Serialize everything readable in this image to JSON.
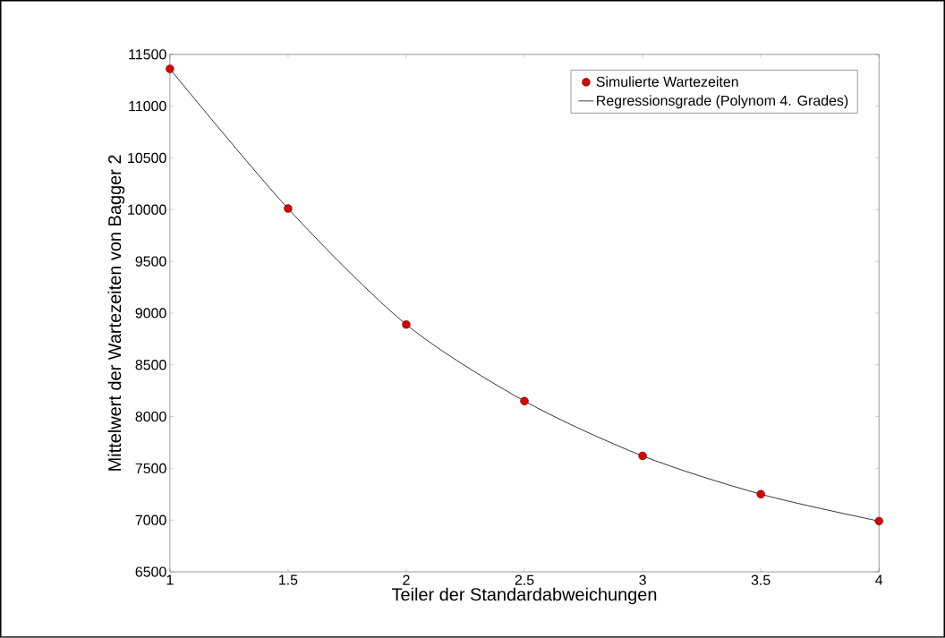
{
  "chart_data": {
    "type": "scatter",
    "xlabel": "Teiler der Standardabweichungen",
    "ylabel": "Mittelwert der Wartezeiten von Bagger 2",
    "x": [
      1,
      1.5,
      2,
      2.5,
      3,
      3.5,
      4
    ],
    "series": [
      {
        "name": "Simulierte Wartezeiten",
        "color": "#dd0000",
        "marker": "circle",
        "values": [
          11360,
          10010,
          8890,
          8150,
          7620,
          7250,
          6990
        ]
      },
      {
        "name": "Regressionsgrade (Polynom 4. Grades)",
        "type": "line",
        "color": "#000000",
        "marker": "none",
        "line_style": "solid",
        "values": [
          11360,
          10010,
          8890,
          8150,
          7620,
          7250,
          6990
        ]
      }
    ],
    "xlim": [
      1,
      4
    ],
    "ylim": [
      6500,
      11500
    ],
    "xticks": [
      1,
      1.5,
      2,
      2.5,
      3,
      3.5,
      4
    ],
    "yticks": [
      6500,
      7000,
      7500,
      8000,
      8500,
      9000,
      9500,
      10000,
      10500,
      11000,
      11500
    ],
    "grid": false,
    "legend": "top right"
  }
}
